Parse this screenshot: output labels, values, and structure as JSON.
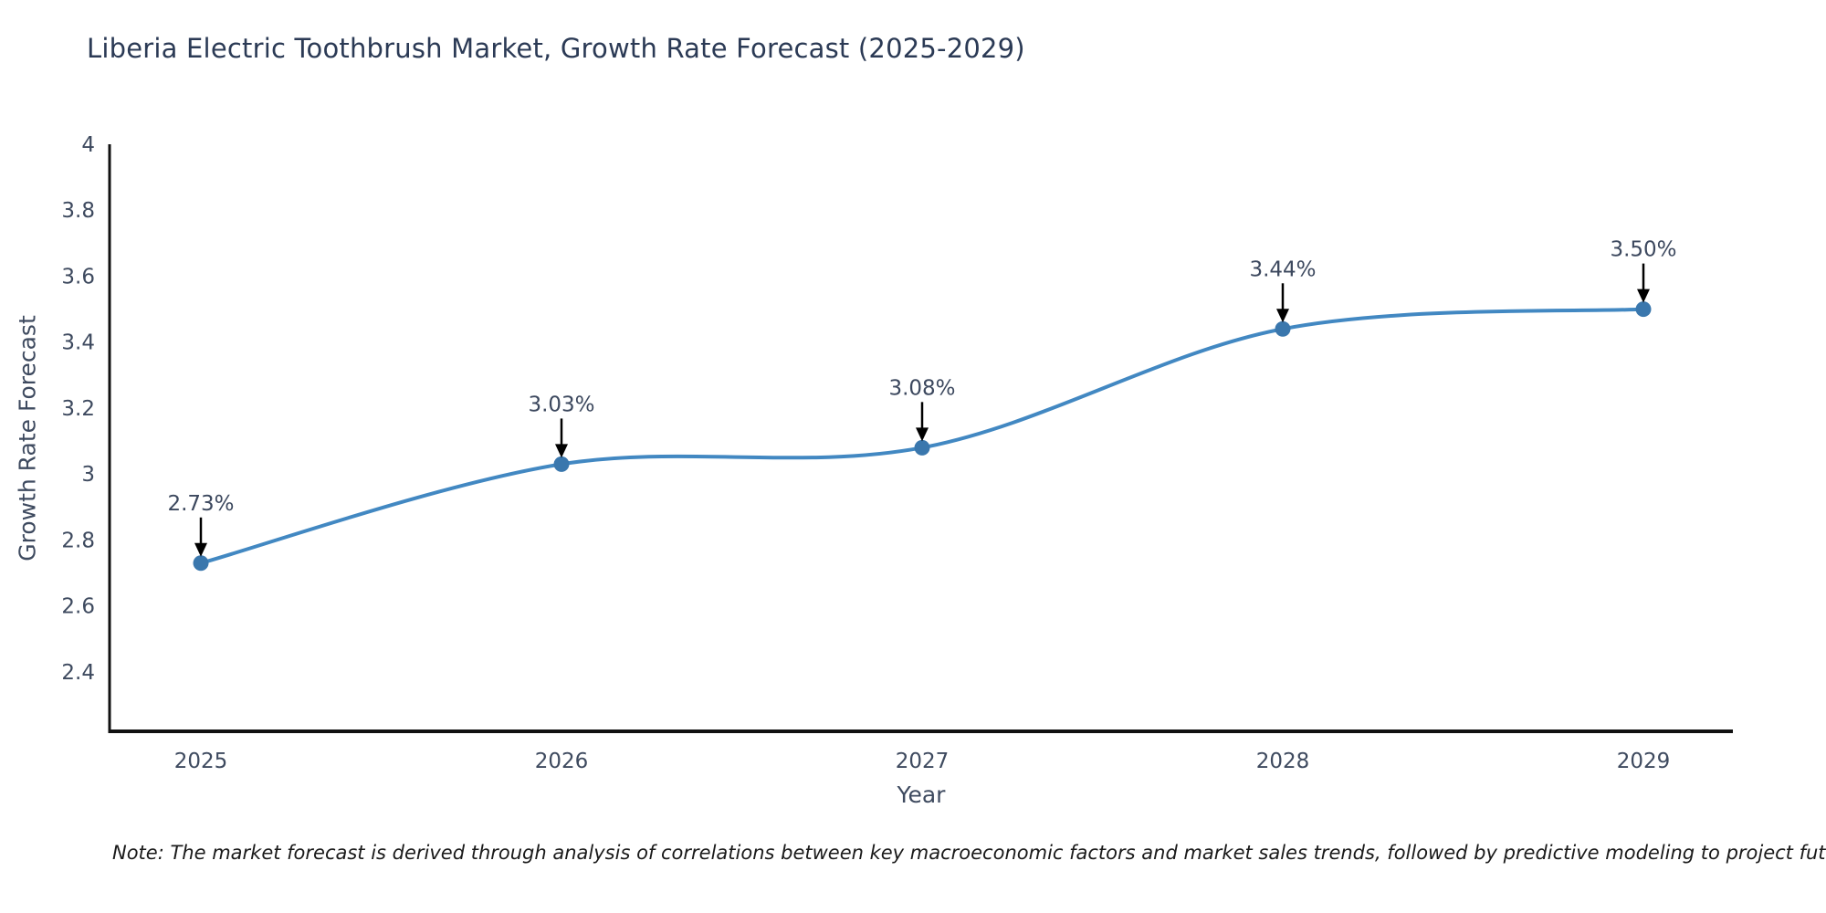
{
  "figure": {
    "note": "Note: The market forecast is derived through analysis of correlations between key macroeconomic factors and market sales trends, followed by predictive modeling to project future sales"
  },
  "chart_data": {
    "type": "line",
    "title": "Liberia Electric Toothbrush Market, Growth Rate Forecast (2025-2029)",
    "xlabel": "Year",
    "ylabel": "Growth Rate Forecast",
    "x": [
      2025,
      2026,
      2027,
      2028,
      2029
    ],
    "categories": [
      "2025",
      "2026",
      "2027",
      "2028",
      "2029"
    ],
    "series": [
      {
        "name": "Growth Rate Forecast",
        "values": [
          2.73,
          3.03,
          3.08,
          3.44,
          3.5
        ]
      }
    ],
    "point_labels": [
      "2.73%",
      "3.03%",
      "3.08%",
      "3.44%",
      "3.50%"
    ],
    "ylim": [
      2.22,
      4.0
    ],
    "yticks": [
      2.4,
      2.6,
      2.8,
      3,
      3.2,
      3.4,
      3.6,
      3.8,
      4
    ],
    "ytick_labels": [
      "2.4",
      "2.6",
      "2.8",
      "3",
      "3.2",
      "3.4",
      "3.6",
      "3.8",
      "4"
    ],
    "grid": false,
    "legend": "none",
    "line_smoothing": "spline",
    "marker_annotations": "arrow-down-to-point",
    "colors": {
      "line": "#4288c2",
      "marker": "#3a77ad",
      "arrow": "#000000",
      "axis": "#111111",
      "tick_label": "#3e4a5f",
      "annotation": "#3c485e",
      "title": "#2b3a55",
      "note": "#1a1a1a"
    }
  }
}
